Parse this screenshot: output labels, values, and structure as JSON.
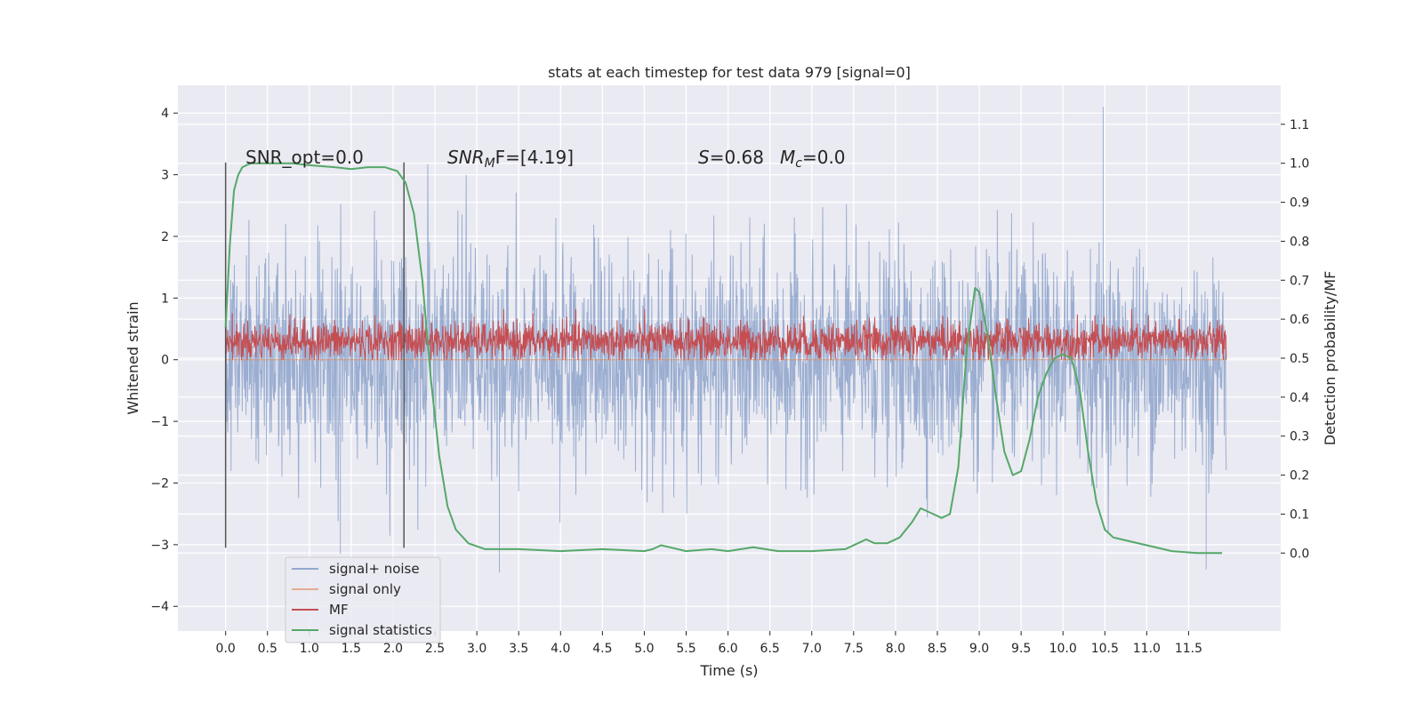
{
  "chart_data": {
    "type": "line",
    "title": "stats at each timestep for test data 979 [signal=0]",
    "xlabel": "Time (s)",
    "ylabel_left": "Whitened strain",
    "ylabel_right": "Detection probability/MF",
    "xlim": [
      -0.57,
      12.6
    ],
    "ylim_left": [
      -4.4,
      4.45
    ],
    "ylim_right": [
      -0.2,
      1.2
    ],
    "xticks": [
      "0.0",
      "0.5",
      "1.0",
      "1.5",
      "2.0",
      "2.5",
      "3.0",
      "3.5",
      "4.0",
      "4.5",
      "5.0",
      "5.5",
      "6.0",
      "6.5",
      "7.0",
      "7.5",
      "8.0",
      "8.5",
      "9.0",
      "9.5",
      "10.0",
      "10.5",
      "11.0",
      "11.5"
    ],
    "yticks_left": [
      "4",
      "3",
      "2",
      "1",
      "0",
      "−1",
      "−2",
      "−3",
      "−4"
    ],
    "yticks_right": [
      "1.1",
      "1.0",
      "0.9",
      "0.8",
      "0.7",
      "0.6",
      "0.5",
      "0.4",
      "0.3",
      "0.2",
      "0.1",
      "0.0"
    ],
    "grid": true,
    "legend_position": "lower-left",
    "annotations": {
      "snr_opt": "SNR_opt=0.0",
      "snr_mf_base": "SNR",
      "snr_mf_sub": "M",
      "snr_mf_rest": "F=[4.19]",
      "s_label": "S",
      "s_value": "=0.68",
      "mc_base": "M",
      "mc_sub": "c",
      "mc_value": "=0.0"
    },
    "vlines": [
      0.0,
      2.13
    ],
    "vline_range_left": [
      -3.05,
      3.2
    ],
    "series": [
      {
        "name": "signal+ noise",
        "color": "#4c72b0",
        "axis": "left",
        "kind": "noise",
        "x_range": [
          0.0,
          11.95
        ],
        "mean": 0.0,
        "std": 0.85,
        "max_spike": 4.1,
        "min_spike": -3.45
      },
      {
        "name": "signal only",
        "color": "#dd8452",
        "axis": "left",
        "kind": "flat",
        "x_range": [
          0.0,
          11.95
        ],
        "value": 0.0
      },
      {
        "name": "MF",
        "color": "#c44e52",
        "axis": "left",
        "kind": "band",
        "x_range": [
          0.0,
          11.95
        ],
        "low": 0.0,
        "mean": 0.3,
        "high": 0.82
      },
      {
        "name": "signal statistics",
        "color": "#55a868",
        "axis": "right",
        "kind": "line",
        "x": [
          0.0,
          0.05,
          0.1,
          0.15,
          0.2,
          0.3,
          0.5,
          0.8,
          1.0,
          1.3,
          1.5,
          1.7,
          1.9,
          2.05,
          2.15,
          2.25,
          2.35,
          2.45,
          2.55,
          2.65,
          2.75,
          2.9,
          3.1,
          3.5,
          4.0,
          4.5,
          5.0,
          5.1,
          5.2,
          5.3,
          5.5,
          5.8,
          6.0,
          6.3,
          6.6,
          7.0,
          7.4,
          7.55,
          7.65,
          7.75,
          7.9,
          8.05,
          8.2,
          8.3,
          8.45,
          8.55,
          8.65,
          8.75,
          8.85,
          8.95,
          9.0,
          9.1,
          9.2,
          9.3,
          9.4,
          9.5,
          9.6,
          9.7,
          9.8,
          9.9,
          10.0,
          10.1,
          10.2,
          10.3,
          10.4,
          10.5,
          10.6,
          10.7,
          10.8,
          11.0,
          11.3,
          11.6,
          11.9
        ],
        "y": [
          0.58,
          0.79,
          0.93,
          0.97,
          0.99,
          1.0,
          1.0,
          1.0,
          0.995,
          0.99,
          0.985,
          0.99,
          0.99,
          0.98,
          0.95,
          0.87,
          0.7,
          0.45,
          0.25,
          0.12,
          0.06,
          0.025,
          0.01,
          0.01,
          0.005,
          0.01,
          0.005,
          0.01,
          0.02,
          0.015,
          0.005,
          0.01,
          0.005,
          0.015,
          0.005,
          0.005,
          0.01,
          0.025,
          0.035,
          0.025,
          0.025,
          0.04,
          0.08,
          0.115,
          0.1,
          0.09,
          0.1,
          0.22,
          0.52,
          0.68,
          0.67,
          0.56,
          0.4,
          0.26,
          0.2,
          0.21,
          0.29,
          0.4,
          0.46,
          0.5,
          0.51,
          0.5,
          0.42,
          0.26,
          0.13,
          0.06,
          0.04,
          0.035,
          0.03,
          0.02,
          0.005,
          0.0,
          0.0
        ]
      }
    ]
  }
}
